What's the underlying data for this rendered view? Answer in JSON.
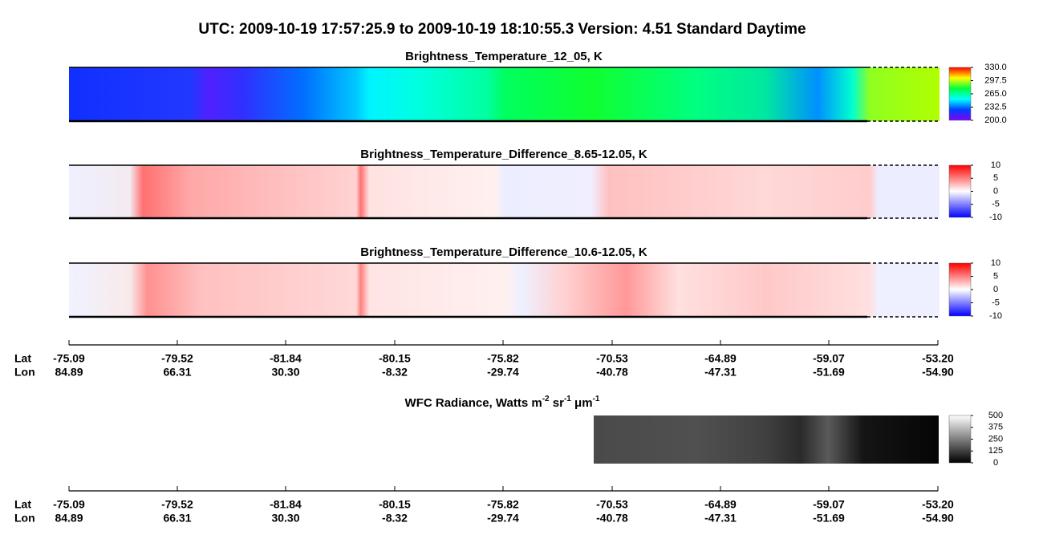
{
  "title": "UTC:  2009-10-19   17:57:25.9  to  2009-10-19   18:10:55.3    Version: 4.51  Standard Daytime",
  "chart_data": [
    {
      "type": "heatmap",
      "title": "Brightness_Temperature_12_05, K",
      "colormap": [
        "#8000ff",
        "#0040ff",
        "#00ffff",
        "#00ff40",
        "#ffff00",
        "#ff0000"
      ],
      "colorbar_ticks": [
        {
          "value": 330,
          "label": "330.0"
        },
        {
          "value": 297.5,
          "label": "297.5"
        },
        {
          "value": 265,
          "label": "265.0"
        },
        {
          "value": 232.5,
          "label": "232.5"
        },
        {
          "value": 200,
          "label": "200.0"
        }
      ]
    },
    {
      "type": "heatmap",
      "title": "Brightness_Temperature_Difference_8.65-12.05, K",
      "colormap": [
        "#0000ff",
        "#ffffff",
        "#ff0000"
      ],
      "colorbar_ticks": [
        10,
        5,
        0,
        -5,
        -10
      ]
    },
    {
      "type": "heatmap",
      "title": "Brightness_Temperature_Difference_10.6-12.05, K",
      "colormap": [
        "#0000ff",
        "#ffffff",
        "#ff0000"
      ],
      "colorbar_ticks": [
        10,
        5,
        0,
        -5,
        -10
      ]
    },
    {
      "type": "heatmap",
      "title": "WFC Radiance, Watts m",
      "title_parts": [
        "-2",
        " sr",
        "-1",
        " μm",
        "-1"
      ],
      "colormap": [
        "#000000",
        "#ffffff"
      ],
      "colorbar_ticks": [
        500,
        375,
        250,
        125,
        0
      ]
    }
  ],
  "track_axis": {
    "labels": [
      "Lat",
      "Lon"
    ],
    "lat": [
      "-75.09",
      "-79.52",
      "-81.84",
      "-80.15",
      "-75.82",
      "-70.53",
      "-64.89",
      "-59.07",
      "-53.20"
    ],
    "lon": [
      "84.89",
      "66.31",
      "30.30",
      "-8.32",
      "-29.74",
      "-40.78",
      "-47.31",
      "-51.69",
      "-54.90"
    ]
  }
}
